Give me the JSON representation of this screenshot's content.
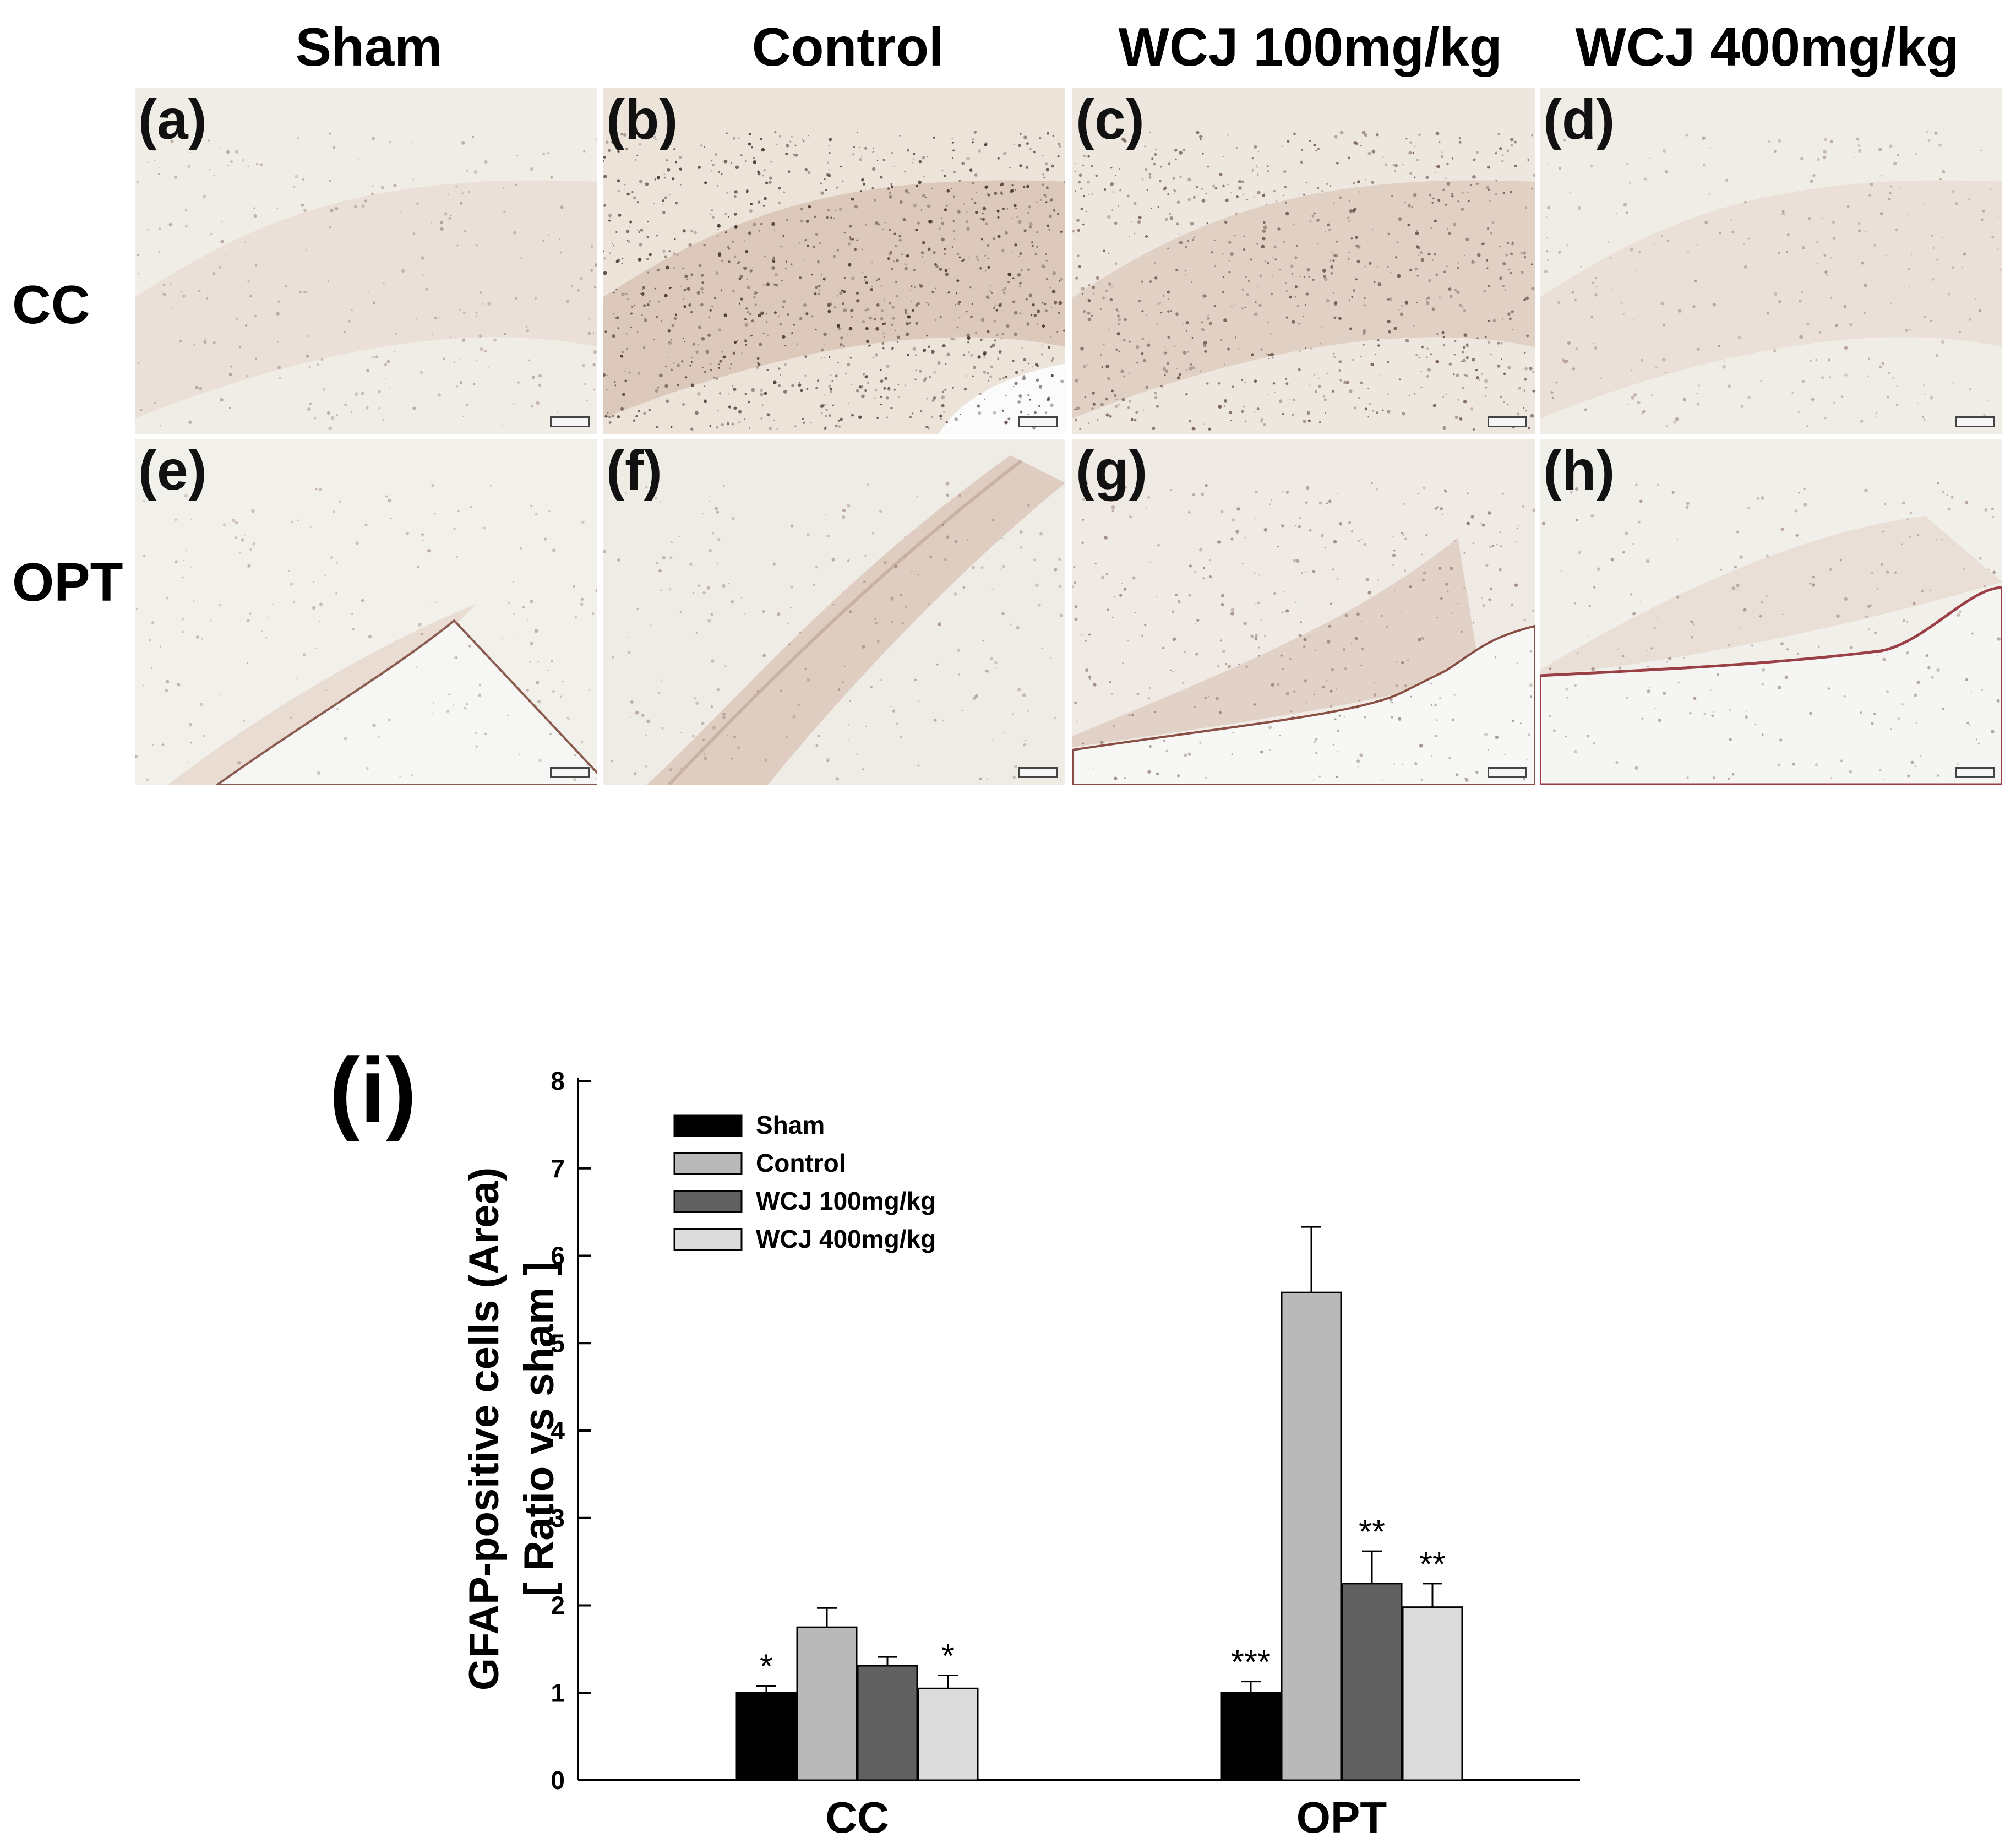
{
  "figure": {
    "column_headers": [
      "Sham",
      "Control",
      "WCJ  100mg/kg",
      "WCJ  400mg/kg"
    ],
    "row_labels": [
      "CC",
      "OPT"
    ],
    "panels": [
      {
        "label": "(a)",
        "tissue": "cc-light"
      },
      {
        "label": "(b)",
        "tissue": "cc-dense"
      },
      {
        "label": "(c)",
        "tissue": "cc-medium"
      },
      {
        "label": "(d)",
        "tissue": "cc-light"
      },
      {
        "label": "(e)",
        "tissue": "opt-light"
      },
      {
        "label": "(f)",
        "tissue": "opt-band"
      },
      {
        "label": "(g)",
        "tissue": "opt-medium"
      },
      {
        "label": "(h)",
        "tissue": "opt-edge"
      }
    ],
    "chart_panel_label": "(i)"
  },
  "chart_data": {
    "type": "bar",
    "categories": [
      "CC",
      "OPT"
    ],
    "series": [
      {
        "name": "Sham",
        "color": "#000000",
        "values": [
          1.0,
          1.0
        ],
        "errors": [
          0.08,
          0.13
        ],
        "annotations": [
          "*",
          "***"
        ]
      },
      {
        "name": "Control",
        "color": "#b9b9b9",
        "values": [
          1.75,
          5.58
        ],
        "errors": [
          0.22,
          0.75
        ],
        "annotations": [
          "",
          ""
        ]
      },
      {
        "name": "WCJ 100mg/kg",
        "color": "#616161",
        "values": [
          1.31,
          2.25
        ],
        "errors": [
          0.1,
          0.37
        ],
        "annotations": [
          "",
          "**"
        ]
      },
      {
        "name": "WCJ 400mg/kg",
        "color": "#dcdcdc",
        "values": [
          1.05,
          1.98
        ],
        "errors": [
          0.15,
          0.27
        ],
        "annotations": [
          "*",
          "**"
        ]
      }
    ],
    "ylabel_line1": "GFAP-positive cells (Area)",
    "ylabel_line2": "[ Ratio vs sham ]",
    "xlabel": "",
    "ylim": [
      0,
      8
    ],
    "yticks": [
      "0",
      "1",
      "2",
      "3",
      "4",
      "5",
      "6",
      "7",
      "8"
    ],
    "legend_position": "top-left",
    "grid": false
  }
}
